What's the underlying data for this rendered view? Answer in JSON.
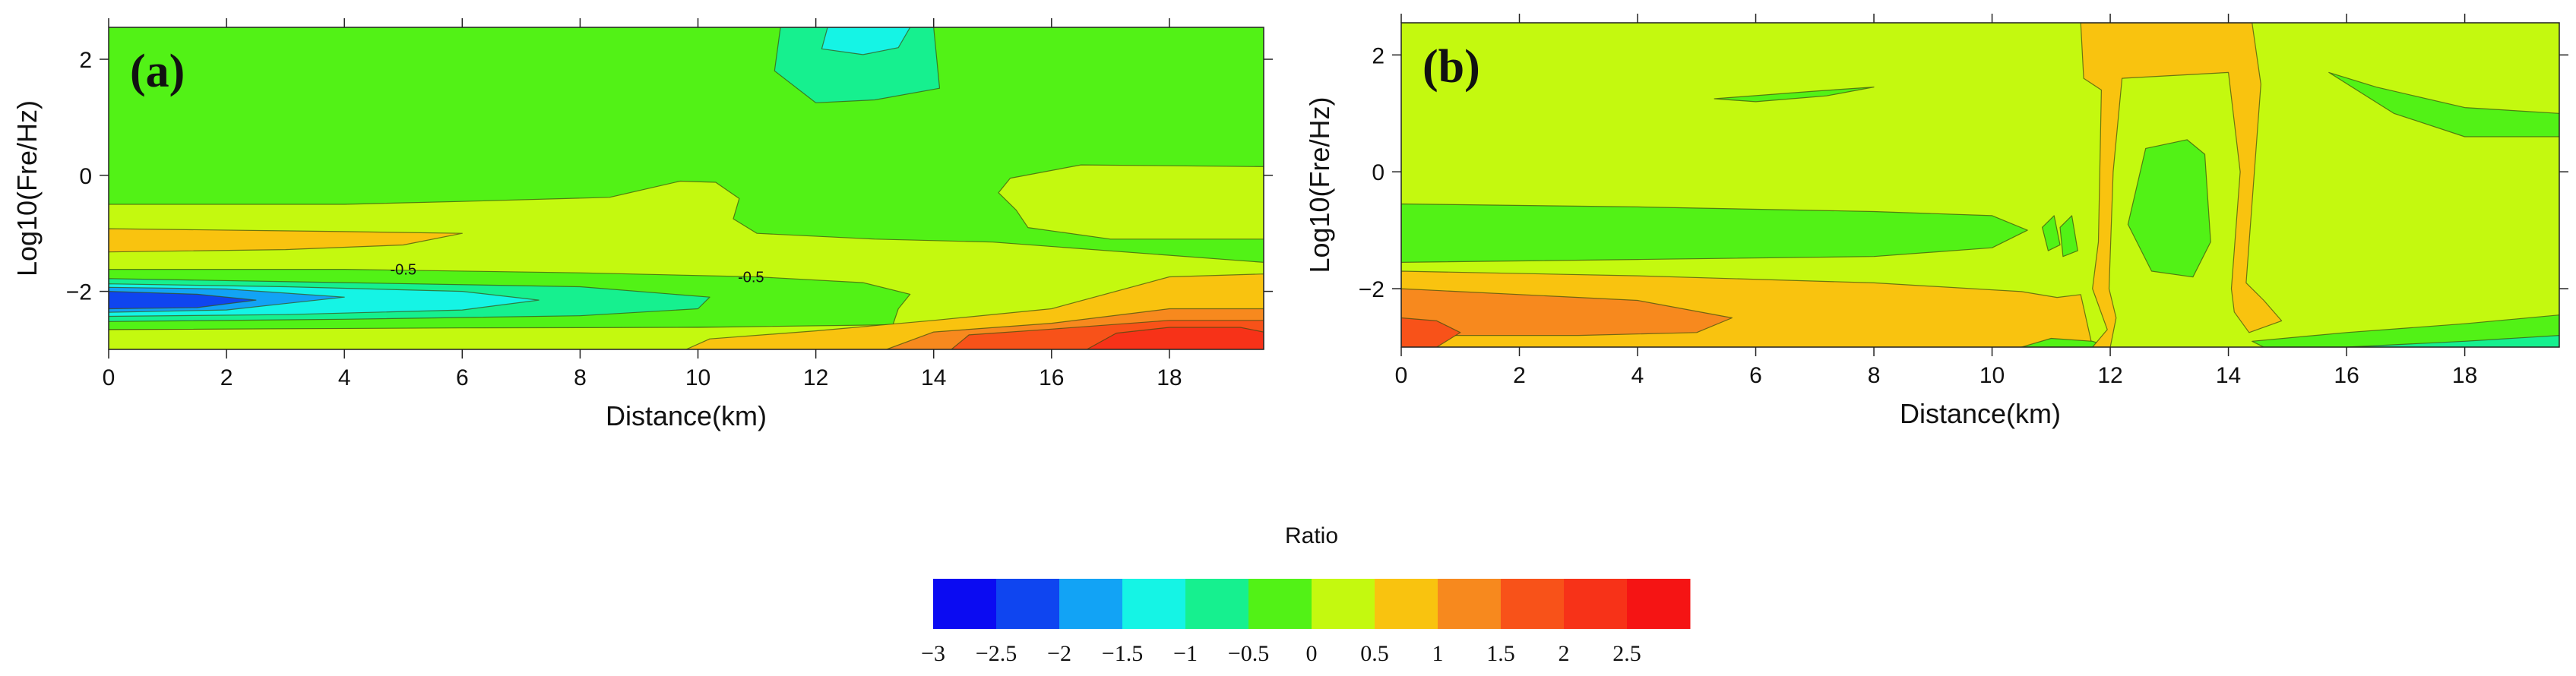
{
  "chart_data": [
    {
      "type": "heatmap",
      "panel_label": "(a)",
      "xlabel": "Distance(km)",
      "ylabel": "Log10(Fre/Hz)",
      "xlim": [
        0,
        19.6
      ],
      "ylim": [
        -3,
        2.55
      ],
      "xticks": [
        0,
        2,
        4,
        6,
        8,
        10,
        12,
        14,
        16,
        18
      ],
      "yticks": [
        -2,
        0,
        2
      ],
      "background_level": -0.5,
      "contour_labels": [
        {
          "text": "-0.5",
          "x": 5.0,
          "y": -1.62
        },
        {
          "text": "-0.5",
          "x": 10.9,
          "y": -1.75
        }
      ],
      "regions": [
        {
          "level": 0,
          "points": [
            [
              0,
              -0.5
            ],
            [
              4,
              -0.5
            ],
            [
              6,
              -0.45
            ],
            [
              8.5,
              -0.38
            ],
            [
              9.7,
              -0.1
            ],
            [
              10.3,
              -0.12
            ],
            [
              10.7,
              -0.4
            ],
            [
              10.6,
              -0.75
            ],
            [
              11,
              -1.0
            ],
            [
              13,
              -1.1
            ],
            [
              15,
              -1.15
            ],
            [
              19.6,
              -1.5
            ],
            [
              19.6,
              -3
            ],
            [
              0,
              -3
            ]
          ]
        },
        {
          "level": 0.5,
          "points": [
            [
              0,
              -0.92
            ],
            [
              4,
              -0.97
            ],
            [
              6,
              -1.0
            ],
            [
              5,
              -1.2
            ],
            [
              3,
              -1.28
            ],
            [
              0,
              -1.32
            ]
          ]
        },
        {
          "level": 0,
          "points": [
            [
              15.4,
              -0.6
            ],
            [
              15.1,
              -0.3
            ],
            [
              15.3,
              -0.05
            ],
            [
              16.5,
              0.18
            ],
            [
              19.6,
              0.15
            ],
            [
              19.6,
              -1.1
            ],
            [
              17,
              -1.1
            ],
            [
              15.6,
              -0.9
            ]
          ]
        },
        {
          "level": -0.5,
          "points": [
            [
              0,
              -1.62
            ],
            [
              4,
              -1.62
            ],
            [
              8,
              -1.68
            ],
            [
              11,
              -1.75
            ],
            [
              12.8,
              -1.85
            ],
            [
              13.6,
              -2.05
            ],
            [
              13.4,
              -2.3
            ],
            [
              13.3,
              -2.6
            ],
            [
              10,
              -2.62
            ],
            [
              6,
              -2.64
            ],
            [
              0,
              -2.66
            ]
          ]
        },
        {
          "level": -1,
          "points": [
            [
              0,
              -1.78
            ],
            [
              4,
              -1.85
            ],
            [
              8,
              -1.92
            ],
            [
              10.2,
              -2.1
            ],
            [
              10,
              -2.3
            ],
            [
              8,
              -2.42
            ],
            [
              4,
              -2.48
            ],
            [
              0,
              -2.52
            ]
          ]
        },
        {
          "level": -1.5,
          "points": [
            [
              0,
              -1.87
            ],
            [
              3,
              -1.92
            ],
            [
              6,
              -2.0
            ],
            [
              7.3,
              -2.15
            ],
            [
              6,
              -2.32
            ],
            [
              3,
              -2.4
            ],
            [
              0,
              -2.43
            ]
          ]
        },
        {
          "level": -2,
          "points": [
            [
              0,
              -1.93
            ],
            [
              2,
              -1.96
            ],
            [
              4,
              -2.1
            ],
            [
              2,
              -2.32
            ],
            [
              0,
              -2.36
            ]
          ]
        },
        {
          "level": -2.5,
          "points": [
            [
              0,
              -2.0
            ],
            [
              1.5,
              -2.05
            ],
            [
              2.5,
              -2.15
            ],
            [
              1.5,
              -2.28
            ],
            [
              0,
              -2.3
            ]
          ]
        },
        {
          "level": 0,
          "points": [
            [
              0,
              -2.66
            ],
            [
              6,
              -2.63
            ],
            [
              10,
              -2.62
            ],
            [
              13,
              -2.58
            ],
            [
              16,
              -2.52
            ],
            [
              19.6,
              -2.45
            ],
            [
              19.6,
              -3
            ],
            [
              0,
              -3
            ]
          ]
        },
        {
          "level": 0.5,
          "points": [
            [
              9.8,
              -3
            ],
            [
              10.2,
              -2.82
            ],
            [
              12,
              -2.68
            ],
            [
              14,
              -2.5
            ],
            [
              16,
              -2.3
            ],
            [
              18,
              -1.75
            ],
            [
              19.6,
              -1.7
            ],
            [
              19.6,
              -3
            ]
          ]
        },
        {
          "level": 1,
          "points": [
            [
              13.2,
              -3
            ],
            [
              14,
              -2.7
            ],
            [
              16,
              -2.55
            ],
            [
              18,
              -2.3
            ],
            [
              19.6,
              -2.3
            ],
            [
              19.6,
              -3
            ]
          ]
        },
        {
          "level": 1.5,
          "points": [
            [
              14.3,
              -3
            ],
            [
              14.6,
              -2.75
            ],
            [
              16,
              -2.65
            ],
            [
              18,
              -2.5
            ],
            [
              19.6,
              -2.5
            ],
            [
              19.6,
              -3
            ]
          ]
        },
        {
          "level": 2,
          "points": [
            [
              16.6,
              -3
            ],
            [
              17.1,
              -2.72
            ],
            [
              18,
              -2.62
            ],
            [
              19.2,
              -2.62
            ],
            [
              19.6,
              -2.7
            ],
            [
              19.6,
              -3
            ]
          ]
        },
        {
          "level": -1,
          "points": [
            [
              11.4,
              2.55
            ],
            [
              11.3,
              1.8
            ],
            [
              12,
              1.25
            ],
            [
              13,
              1.3
            ],
            [
              14.1,
              1.5
            ],
            [
              14,
              2.55
            ]
          ]
        },
        {
          "level": -1.5,
          "points": [
            [
              12.2,
              2.55
            ],
            [
              12.1,
              2.18
            ],
            [
              12.8,
              2.08
            ],
            [
              13.4,
              2.2
            ],
            [
              13.6,
              2.55
            ]
          ]
        }
      ]
    },
    {
      "type": "heatmap",
      "panel_label": "(b)",
      "xlabel": "Distance(km)",
      "ylabel": "Log10(Fre/Hz)",
      "xlim": [
        0,
        19.6
      ],
      "ylim": [
        -3,
        2.55
      ],
      "xticks": [
        0,
        2,
        4,
        6,
        8,
        10,
        12,
        14,
        16,
        18
      ],
      "yticks": [
        -2,
        0,
        2
      ],
      "background_level": 0,
      "contour_labels": [],
      "regions": [
        {
          "level": -0.5,
          "points": [
            [
              0,
              -0.55
            ],
            [
              4,
              -0.6
            ],
            [
              8,
              -0.68
            ],
            [
              10,
              -0.75
            ],
            [
              10.6,
              -1.0
            ],
            [
              10,
              -1.3
            ],
            [
              8,
              -1.45
            ],
            [
              4,
              -1.5
            ],
            [
              0,
              -1.55
            ]
          ]
        },
        {
          "level": 0.5,
          "points": [
            [
              0,
              -1.7
            ],
            [
              4,
              -1.78
            ],
            [
              8,
              -1.9
            ],
            [
              10.5,
              -2.05
            ],
            [
              11.1,
              -2.15
            ],
            [
              11.5,
              -2.1
            ],
            [
              11.7,
              -3
            ],
            [
              0,
              -3
            ]
          ]
        },
        {
          "level": 1,
          "points": [
            [
              0,
              -2.0
            ],
            [
              4,
              -2.2
            ],
            [
              5.6,
              -2.5
            ],
            [
              5,
              -2.75
            ],
            [
              3,
              -2.8
            ],
            [
              0,
              -2.8
            ]
          ]
        },
        {
          "level": 1.5,
          "points": [
            [
              0,
              -2.5
            ],
            [
              0.6,
              -2.55
            ],
            [
              1.0,
              -2.75
            ],
            [
              0.6,
              -3
            ],
            [
              0,
              -3
            ]
          ]
        },
        {
          "level": -0.5,
          "points": [
            [
              10.5,
              -3
            ],
            [
              11,
              -2.85
            ],
            [
              11.7,
              -2.9
            ],
            [
              12,
              -3
            ]
          ]
        },
        {
          "level": 0.5,
          "points": [
            [
              11.5,
              2.55
            ],
            [
              11.55,
              1.6
            ],
            [
              11.85,
              1.4
            ],
            [
              11.8,
              -1.2
            ],
            [
              11.7,
              -2.0
            ],
            [
              11.95,
              -2.7
            ],
            [
              11.7,
              -3
            ],
            [
              12,
              -3
            ],
            [
              12.1,
              -2.5
            ],
            [
              11.98,
              -2.0
            ],
            [
              12.05,
              0
            ],
            [
              12.2,
              1.6
            ],
            [
              14.0,
              1.7
            ],
            [
              14.2,
              0
            ],
            [
              14.05,
              -2.0
            ],
            [
              14.1,
              -2.4
            ],
            [
              14.35,
              -2.75
            ],
            [
              14.9,
              -2.55
            ],
            [
              14.6,
              -2.2
            ],
            [
              14.3,
              -1.9
            ],
            [
              14.55,
              1.5
            ],
            [
              14.4,
              2.55
            ]
          ]
        },
        {
          "level": -0.5,
          "points": [
            [
              12.3,
              -0.9
            ],
            [
              12.6,
              0.4
            ],
            [
              13.3,
              0.55
            ],
            [
              13.6,
              0.3
            ],
            [
              13.7,
              -1.2
            ],
            [
              13.4,
              -1.8
            ],
            [
              12.7,
              -1.7
            ]
          ]
        },
        {
          "level": -0.5,
          "points": [
            [
              5.3,
              1.25
            ],
            [
              7,
              1.38
            ],
            [
              8,
              1.45
            ],
            [
              7.2,
              1.3
            ],
            [
              6,
              1.2
            ]
          ]
        },
        {
          "level": -0.5,
          "points": [
            [
              15.7,
              1.7
            ],
            [
              16.5,
              1.45
            ],
            [
              18,
              1.1
            ],
            [
              19.6,
              1.0
            ],
            [
              19.6,
              0.6
            ],
            [
              18,
              0.6
            ],
            [
              16.8,
              1.0
            ]
          ]
        },
        {
          "level": -0.5,
          "points": [
            [
              10.85,
              -0.95
            ],
            [
              11.05,
              -0.75
            ],
            [
              11.15,
              -1.25
            ],
            [
              10.95,
              -1.35
            ]
          ]
        },
        {
          "level": -0.5,
          "points": [
            [
              11.15,
              -0.95
            ],
            [
              11.35,
              -0.75
            ],
            [
              11.45,
              -1.35
            ],
            [
              11.2,
              -1.45
            ]
          ]
        },
        {
          "level": -0.5,
          "points": [
            [
              14.4,
              -2.9
            ],
            [
              16,
              -2.75
            ],
            [
              18,
              -2.6
            ],
            [
              19.6,
              -2.45
            ],
            [
              19.6,
              -2.85
            ],
            [
              18,
              -2.95
            ],
            [
              16,
              -3
            ],
            [
              14.6,
              -3
            ]
          ]
        },
        {
          "level": -1,
          "points": [
            [
              16,
              -3
            ],
            [
              18,
              -2.9
            ],
            [
              19.6,
              -2.8
            ],
            [
              19.6,
              -3
            ]
          ]
        }
      ]
    }
  ],
  "colorbar": {
    "title": "Ratio",
    "ticks": [
      "−3",
      "−2.5",
      "−2",
      "−1.5",
      "−1",
      "−0.5",
      "0",
      "0.5",
      "1",
      "1.5",
      "2",
      "2.5"
    ],
    "bins": [
      {
        "from": -3,
        "color": "#0b0bf2"
      },
      {
        "from": -2.5,
        "color": "#0f45f0"
      },
      {
        "from": -2,
        "color": "#12a3f5"
      },
      {
        "from": -1.5,
        "color": "#15f4e5"
      },
      {
        "from": -1,
        "color": "#16f08f"
      },
      {
        "from": -0.5,
        "color": "#52f216"
      },
      {
        "from": 0,
        "color": "#c4f90f"
      },
      {
        "from": 0.5,
        "color": "#f9c30f"
      },
      {
        "from": 1,
        "color": "#f7891e"
      },
      {
        "from": 1.5,
        "color": "#f85219"
      },
      {
        "from": 2,
        "color": "#f73218"
      },
      {
        "from": 2.5,
        "color": "#f51414"
      }
    ]
  }
}
